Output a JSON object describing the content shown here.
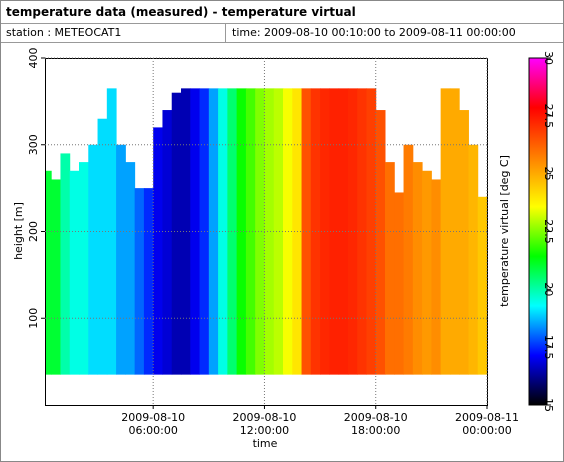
{
  "header": {
    "title": "temperature data (measured) - temperature virtual",
    "station": "station : METEOCAT1",
    "time": "time: 2009-08-10 00:10:00 to 2009-08-11 00:00:00"
  },
  "chart_data": {
    "type": "heatmap",
    "ylabel": "height [m]",
    "xlabel": "time",
    "colorbar_label": "temperature virtual [deg C]",
    "x": [
      0.25,
      0.75,
      1.25,
      1.75,
      2.25,
      2.75,
      3.25,
      3.75,
      4.25,
      4.75,
      5.25,
      5.75,
      6.25,
      6.75,
      7.25,
      7.75,
      8.25,
      8.75,
      9.25,
      9.75,
      10.25,
      10.75,
      11.25,
      11.75,
      12.25,
      12.75,
      13.25,
      13.75,
      14.25,
      14.75,
      15.25,
      15.75,
      16.25,
      16.75,
      17.25,
      17.75,
      18.25,
      18.75,
      19.25,
      19.75,
      20.25,
      20.75,
      21.25,
      21.75,
      22.25,
      22.75,
      23.25,
      23.75
    ],
    "values": [
      21,
      21,
      20,
      19.5,
      19.5,
      19,
      19,
      19,
      18.5,
      18.5,
      18,
      17.5,
      17,
      16.8,
      16.5,
      16.5,
      17,
      17.5,
      18.5,
      19.5,
      20.5,
      21.5,
      22,
      22.5,
      22.8,
      23,
      23.5,
      24,
      26.5,
      27,
      27.2,
      27.3,
      27.3,
      27.2,
      27,
      26.8,
      26.5,
      26,
      26,
      25.8,
      25.5,
      25.3,
      25.5,
      25,
      25,
      25,
      24.8,
      24.5
    ],
    "tops": [
      270,
      260,
      290,
      270,
      280,
      300,
      330,
      365,
      300,
      280,
      250,
      250,
      320,
      340,
      360,
      365,
      365,
      365,
      365,
      365,
      365,
      365,
      365,
      365,
      365,
      365,
      365,
      365,
      365,
      365,
      365,
      365,
      365,
      365,
      365,
      365,
      340,
      280,
      245,
      300,
      280,
      270,
      260,
      365,
      365,
      340,
      300,
      240
    ],
    "base_height": 35,
    "xlim": [
      0.1667,
      24
    ],
    "xticks": [
      {
        "value": 6,
        "label": "2009-08-10\n06:00:00"
      },
      {
        "value": 12,
        "label": "2009-08-10\n12:00:00"
      },
      {
        "value": 18,
        "label": "2009-08-10\n18:00:00"
      },
      {
        "value": 24,
        "label": "2009-08-11\n00:00:00"
      }
    ],
    "ylim": [
      0,
      400
    ],
    "yticks": [
      100,
      200,
      300,
      400
    ],
    "zlim": [
      15,
      30
    ],
    "zticks": [
      15,
      17.5,
      20,
      22.5,
      25,
      27.5,
      30
    ],
    "colormap": [
      "#000000",
      "#0000ff",
      "#00ffff",
      "#00ff00",
      "#ffff00",
      "#ff8000",
      "#ff0000",
      "#ff00ff"
    ],
    "grid": true
  }
}
